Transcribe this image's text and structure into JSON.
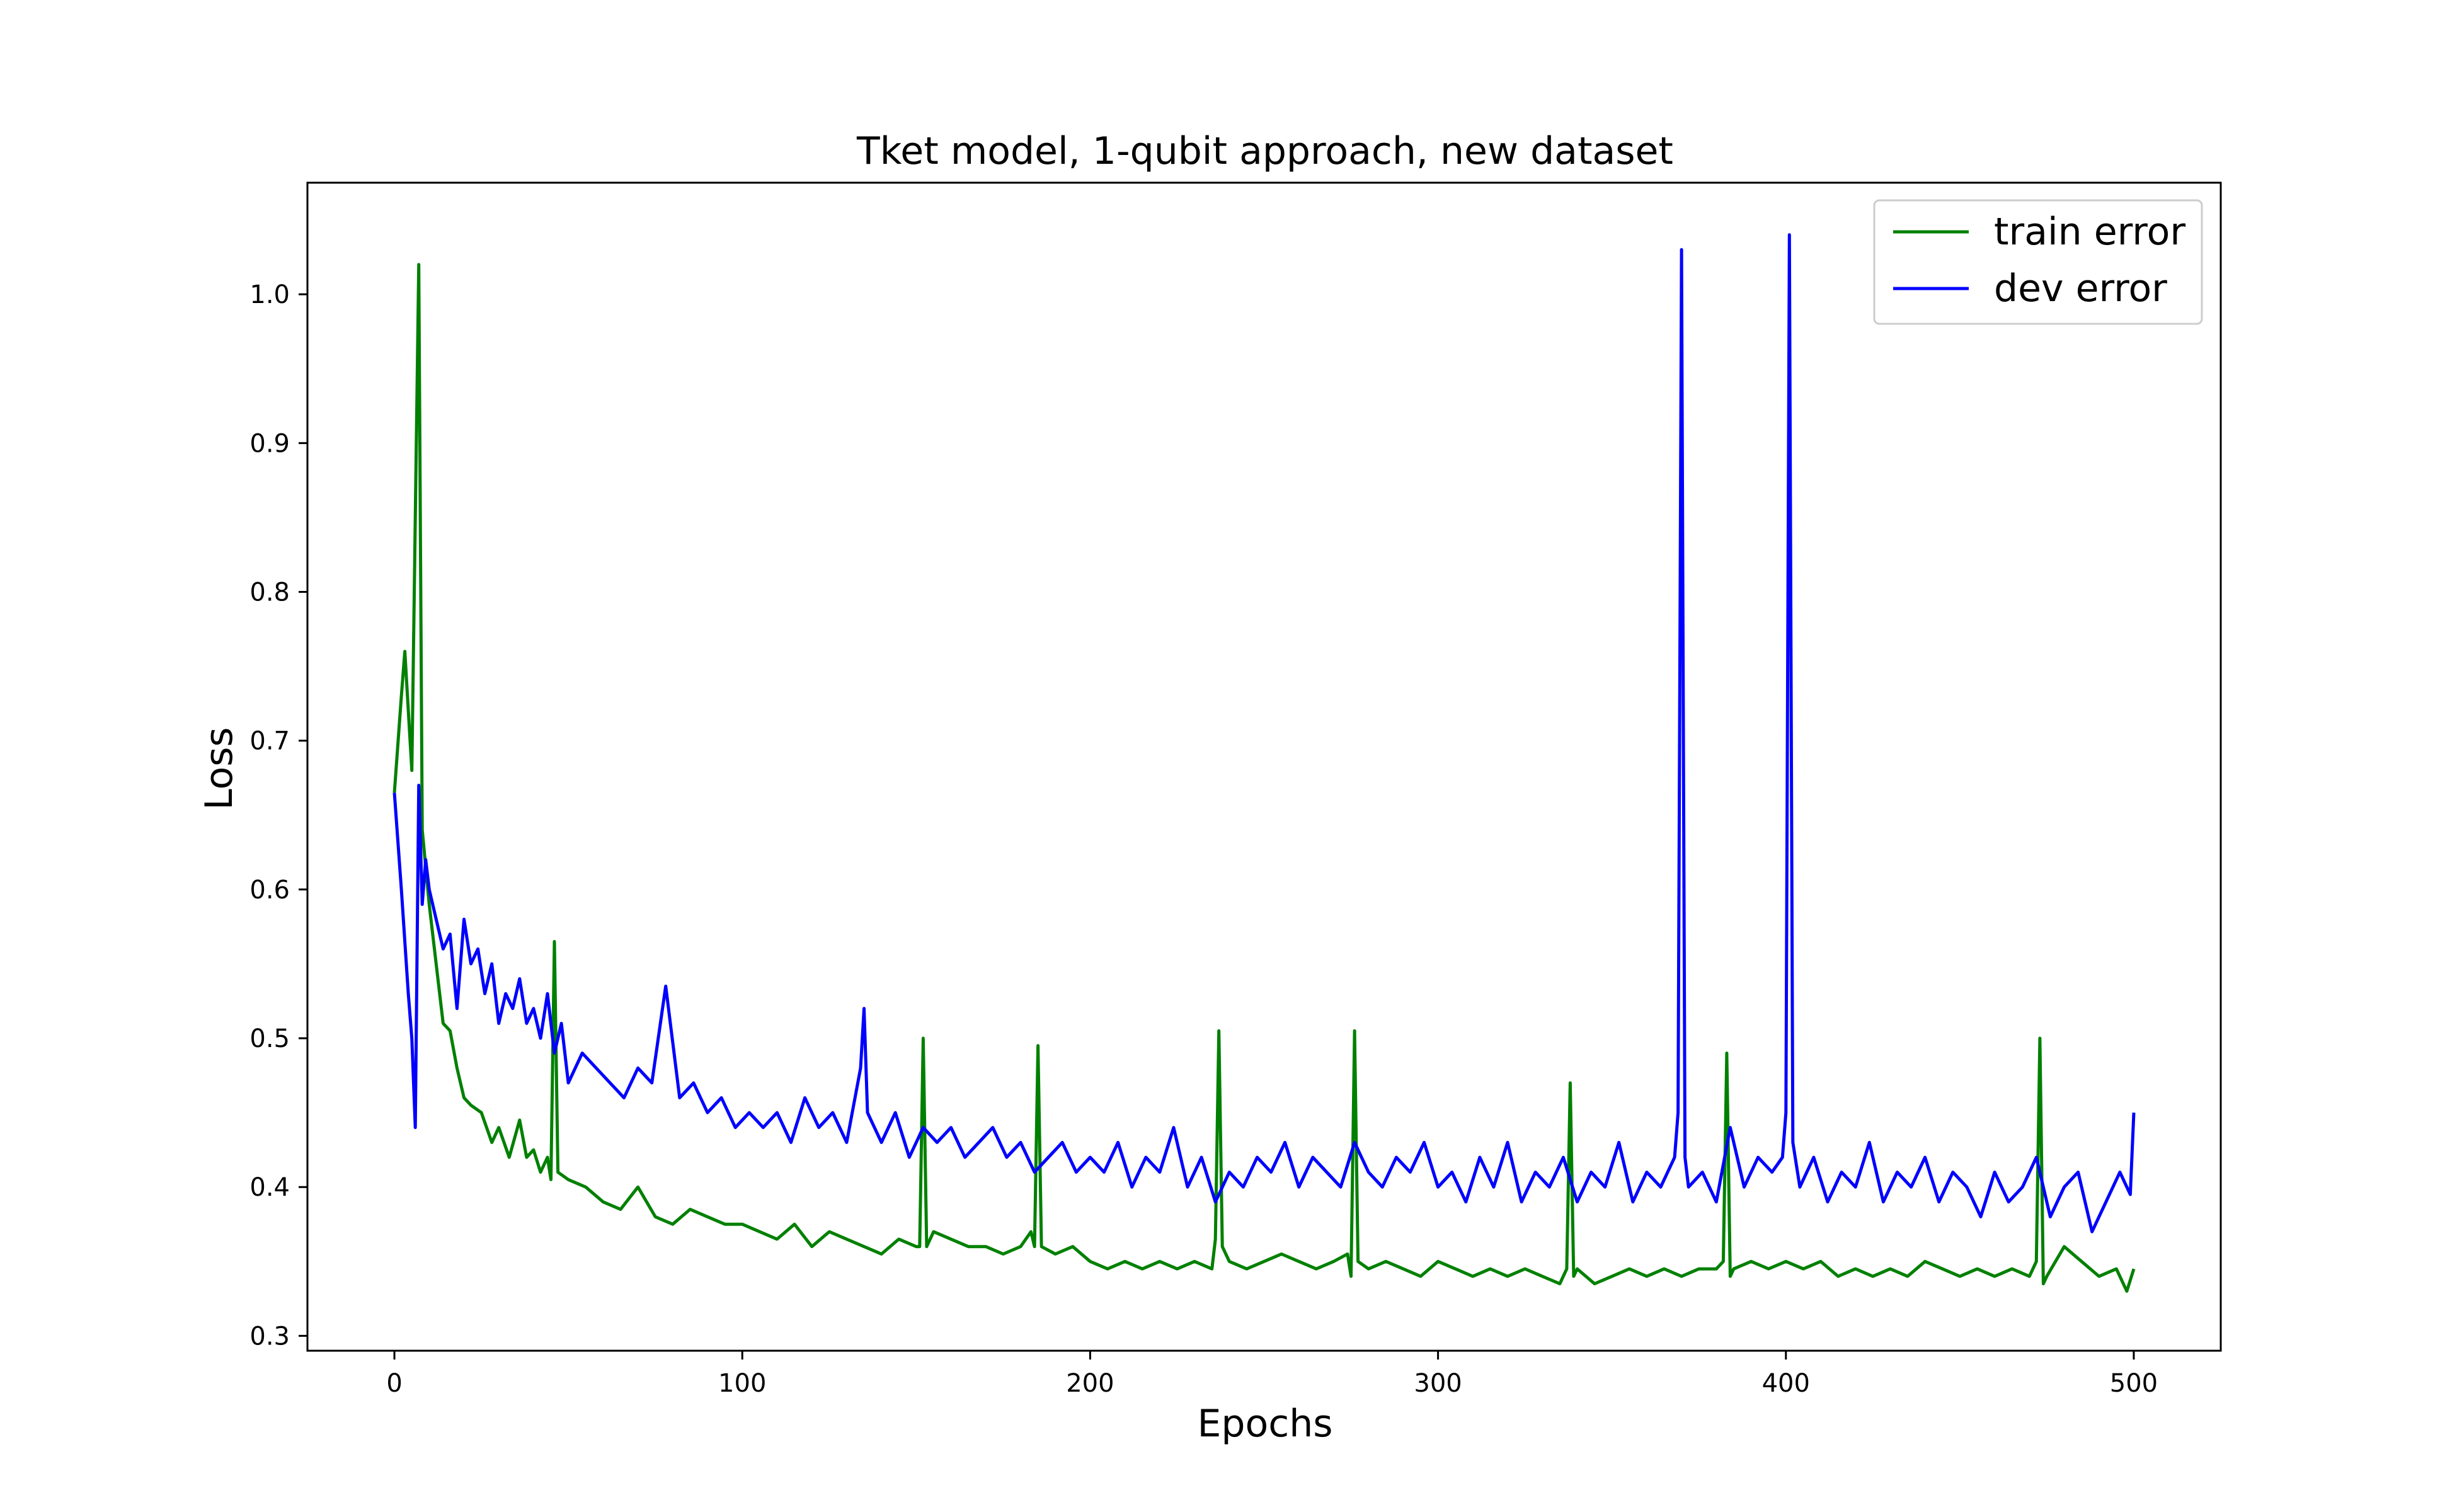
{
  "chart_data": {
    "type": "line",
    "title": "Tket model, 1-qubit approach, new dataset",
    "xlabel": "Epochs",
    "ylabel": "Loss",
    "xlim": [
      -25,
      525
    ],
    "ylim": [
      0.29,
      1.075
    ],
    "xticks": [
      0,
      100,
      200,
      300,
      400,
      500
    ],
    "yticks": [
      0.3,
      0.4,
      0.5,
      0.6,
      0.7,
      0.8,
      0.9,
      1.0
    ],
    "ytick_labels": [
      "0.3",
      "0.4",
      "0.5",
      "0.6",
      "0.7",
      "0.8",
      "0.9",
      "1.0"
    ],
    "grid": false,
    "legend_position": "top-right",
    "series": [
      {
        "name": "train error",
        "color": "#008000",
        "x": [
          0,
          2,
          3,
          5,
          7,
          8,
          10,
          12,
          14,
          16,
          18,
          20,
          22,
          25,
          28,
          30,
          33,
          36,
          38,
          40,
          42,
          44,
          45,
          46,
          47,
          50,
          55,
          60,
          65,
          70,
          75,
          80,
          85,
          90,
          95,
          100,
          105,
          110,
          115,
          120,
          125,
          130,
          135,
          140,
          145,
          150,
          151,
          152,
          153,
          155,
          160,
          165,
          170,
          175,
          180,
          183,
          184,
          185,
          186,
          190,
          195,
          200,
          205,
          210,
          215,
          220,
          225,
          230,
          235,
          236,
          237,
          238,
          240,
          245,
          250,
          255,
          260,
          265,
          270,
          274,
          275,
          276,
          277,
          280,
          285,
          290,
          295,
          300,
          305,
          310,
          315,
          320,
          325,
          330,
          335,
          337,
          338,
          339,
          340,
          345,
          350,
          355,
          360,
          365,
          370,
          375,
          380,
          382,
          383,
          384,
          385,
          390,
          395,
          400,
          405,
          410,
          415,
          420,
          425,
          430,
          435,
          440,
          445,
          450,
          455,
          460,
          465,
          470,
          472,
          473,
          474,
          475,
          480,
          485,
          490,
          495,
          498,
          500
        ],
        "values": [
          0.665,
          0.73,
          0.76,
          0.68,
          1.02,
          0.64,
          0.59,
          0.55,
          0.51,
          0.505,
          0.48,
          0.46,
          0.455,
          0.45,
          0.43,
          0.44,
          0.42,
          0.445,
          0.42,
          0.425,
          0.41,
          0.42,
          0.405,
          0.565,
          0.41,
          0.405,
          0.4,
          0.39,
          0.385,
          0.4,
          0.38,
          0.375,
          0.385,
          0.38,
          0.375,
          0.375,
          0.37,
          0.365,
          0.375,
          0.36,
          0.37,
          0.365,
          0.36,
          0.355,
          0.365,
          0.36,
          0.36,
          0.5,
          0.36,
          0.37,
          0.365,
          0.36,
          0.36,
          0.355,
          0.36,
          0.37,
          0.36,
          0.495,
          0.36,
          0.355,
          0.36,
          0.35,
          0.345,
          0.35,
          0.345,
          0.35,
          0.345,
          0.35,
          0.345,
          0.365,
          0.505,
          0.36,
          0.35,
          0.345,
          0.35,
          0.355,
          0.35,
          0.345,
          0.35,
          0.355,
          0.34,
          0.505,
          0.35,
          0.345,
          0.35,
          0.345,
          0.34,
          0.35,
          0.345,
          0.34,
          0.345,
          0.34,
          0.345,
          0.34,
          0.335,
          0.345,
          0.47,
          0.34,
          0.345,
          0.335,
          0.34,
          0.345,
          0.34,
          0.345,
          0.34,
          0.345,
          0.345,
          0.35,
          0.49,
          0.34,
          0.345,
          0.35,
          0.345,
          0.35,
          0.345,
          0.35,
          0.34,
          0.345,
          0.34,
          0.345,
          0.34,
          0.35,
          0.345,
          0.34,
          0.345,
          0.34,
          0.345,
          0.34,
          0.35,
          0.5,
          0.335,
          0.34,
          0.36,
          0.35,
          0.34,
          0.345,
          0.33,
          0.345
        ]
      },
      {
        "name": "dev error",
        "color": "#0000ff",
        "x": [
          0,
          2,
          4,
          5,
          6,
          7,
          8,
          9,
          10,
          12,
          14,
          16,
          18,
          20,
          22,
          24,
          26,
          28,
          30,
          32,
          34,
          36,
          38,
          40,
          42,
          44,
          46,
          48,
          50,
          54,
          58,
          62,
          66,
          70,
          74,
          78,
          82,
          86,
          90,
          94,
          98,
          102,
          106,
          110,
          114,
          118,
          122,
          126,
          130,
          134,
          135,
          136,
          140,
          144,
          148,
          152,
          156,
          160,
          164,
          168,
          172,
          176,
          180,
          184,
          188,
          192,
          196,
          200,
          204,
          208,
          212,
          216,
          220,
          224,
          228,
          232,
          236,
          240,
          244,
          248,
          252,
          256,
          260,
          264,
          268,
          272,
          276,
          280,
          284,
          288,
          292,
          296,
          300,
          304,
          308,
          312,
          316,
          320,
          324,
          328,
          332,
          336,
          340,
          344,
          348,
          352,
          356,
          360,
          364,
          368,
          369,
          370,
          371,
          372,
          376,
          380,
          384,
          388,
          392,
          396,
          399,
          400,
          401,
          402,
          404,
          408,
          412,
          416,
          420,
          424,
          428,
          432,
          436,
          440,
          444,
          448,
          452,
          456,
          460,
          464,
          468,
          472,
          476,
          480,
          484,
          488,
          492,
          496,
          499,
          500
        ],
        "values": [
          0.665,
          0.6,
          0.53,
          0.5,
          0.44,
          0.67,
          0.59,
          0.62,
          0.6,
          0.58,
          0.56,
          0.57,
          0.52,
          0.58,
          0.55,
          0.56,
          0.53,
          0.55,
          0.51,
          0.53,
          0.52,
          0.54,
          0.51,
          0.52,
          0.5,
          0.53,
          0.49,
          0.51,
          0.47,
          0.49,
          0.48,
          0.47,
          0.46,
          0.48,
          0.47,
          0.535,
          0.46,
          0.47,
          0.45,
          0.46,
          0.44,
          0.45,
          0.44,
          0.45,
          0.43,
          0.46,
          0.44,
          0.45,
          0.43,
          0.48,
          0.52,
          0.45,
          0.43,
          0.45,
          0.42,
          0.44,
          0.43,
          0.44,
          0.42,
          0.43,
          0.44,
          0.42,
          0.43,
          0.41,
          0.42,
          0.43,
          0.41,
          0.42,
          0.41,
          0.43,
          0.4,
          0.42,
          0.41,
          0.44,
          0.4,
          0.42,
          0.39,
          0.41,
          0.4,
          0.42,
          0.41,
          0.43,
          0.4,
          0.42,
          0.41,
          0.4,
          0.43,
          0.41,
          0.4,
          0.42,
          0.41,
          0.43,
          0.4,
          0.41,
          0.39,
          0.42,
          0.4,
          0.43,
          0.39,
          0.41,
          0.4,
          0.42,
          0.39,
          0.41,
          0.4,
          0.43,
          0.39,
          0.41,
          0.4,
          0.42,
          0.45,
          1.03,
          0.42,
          0.4,
          0.41,
          0.39,
          0.44,
          0.4,
          0.42,
          0.41,
          0.42,
          0.45,
          1.04,
          0.43,
          0.4,
          0.42,
          0.39,
          0.41,
          0.4,
          0.43,
          0.39,
          0.41,
          0.4,
          0.42,
          0.39,
          0.41,
          0.4,
          0.38,
          0.41,
          0.39,
          0.4,
          0.42,
          0.38,
          0.4,
          0.41,
          0.37,
          0.39,
          0.41,
          0.395,
          0.45
        ]
      }
    ]
  }
}
